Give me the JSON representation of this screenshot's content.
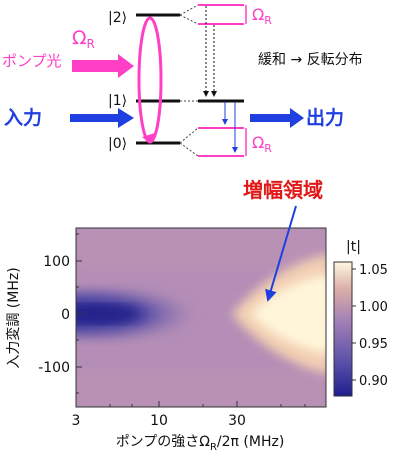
{
  "diagram": {
    "levels": {
      "level_2": "|2⟩",
      "level_1": "|1⟩",
      "level_0": "|0⟩"
    },
    "omega_upper": "Ω",
    "omega_upper_sub": "R",
    "omega_lower": "Ω",
    "omega_lower_sub": "R",
    "pump_label": "ポンプ光",
    "pump_omega": "Ω",
    "pump_omega_sub": "R",
    "relaxation_label": "緩和 → 反転分布",
    "input_label": "入力",
    "output_label": "出力",
    "gain_region_label": "増幅領域",
    "colors": {
      "pump": "#ff3fc6",
      "arrow_blue": "#1f3fe0",
      "gain_red": "#e01818",
      "level_line": "#111111"
    }
  },
  "plot": {
    "ylabel": "入力変調 (MHz)",
    "xlabel_prefix": "ポンプの強さΩ",
    "xlabel_sub": "R",
    "xlabel_suffix": "/2π (MHz)",
    "x_ticks": [
      "3",
      "10",
      "30"
    ],
    "y_ticks": [
      "100",
      "0",
      "-100"
    ],
    "colorbar_title": "|t|",
    "colorbar_ticks": [
      "1.05",
      "1.00",
      "0.95",
      "0.90"
    ]
  },
  "chart_data": {
    "type": "heatmap",
    "xlabel": "ポンプの強さΩR/2π (MHz)",
    "ylabel": "入力変調 (MHz)",
    "x_scale": "log",
    "xlim": [
      3,
      100
    ],
    "ylim": [
      -150,
      150
    ],
    "x_tick_values": [
      3,
      10,
      30
    ],
    "y_tick_values": [
      100,
      0,
      -100
    ],
    "colorbar": {
      "label": "|t|",
      "range": [
        0.88,
        1.06
      ],
      "ticks": [
        1.05,
        1.0,
        0.95,
        0.9
      ],
      "colors": [
        "#2a2a9a",
        "#6a5aa8",
        "#a886b6",
        "#e0b3ac",
        "#fff6dc"
      ]
    },
    "background_value": 0.97,
    "features": [
      {
        "name": "absorption band",
        "center_y": 0,
        "x_range": [
          3,
          20
        ],
        "min_value": 0.88
      },
      {
        "name": "gain region",
        "center_y": 0,
        "x_range": [
          22,
          100
        ],
        "max_value": 1.05
      }
    ]
  }
}
